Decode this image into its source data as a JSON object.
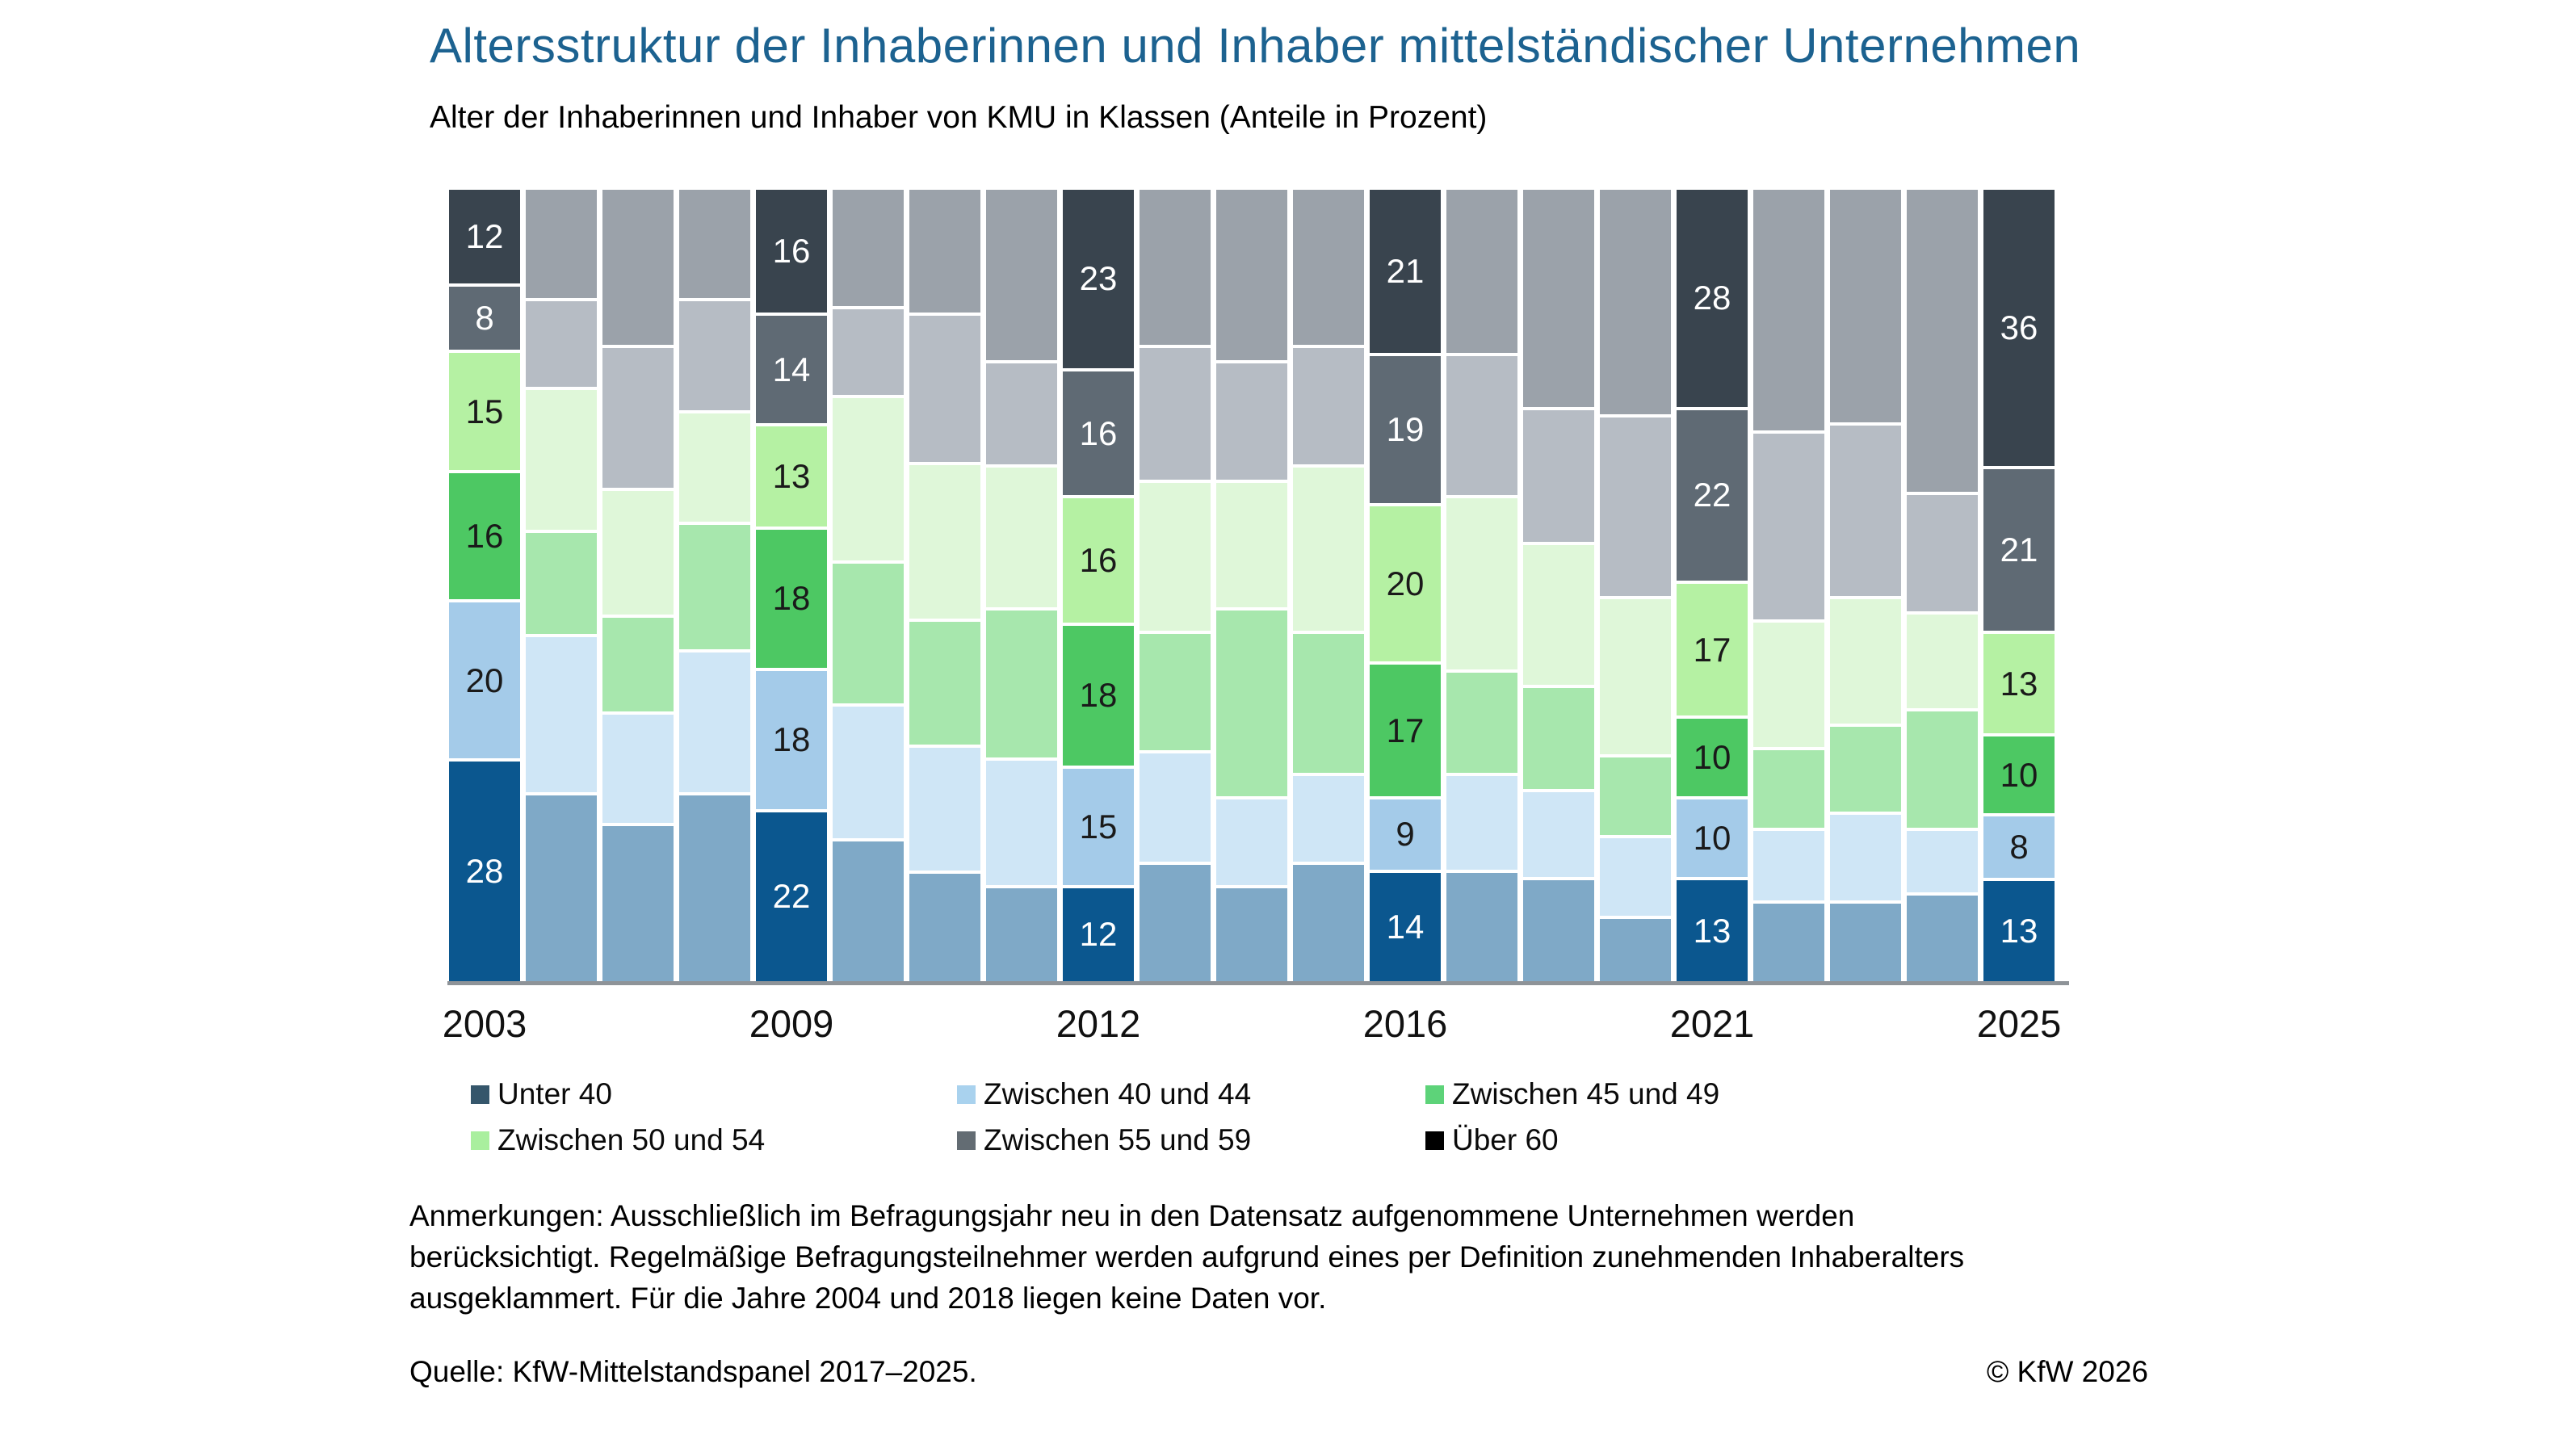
{
  "title": "Altersstruktur der Inhaberinnen und Inhaber mittelständischer Unternehmen",
  "subtitle": "Alter der Inhaberinnen und Inhaber von KMU in Klassen (Anteile in Prozent)",
  "colors": {
    "title_text": "#1C6290",
    "baseline": "#8E9398",
    "label_light": "#FFFFFF",
    "label_dark": "#1A1A1A",
    "highlight": {
      "u40": "#0B578F",
      "b40_44": "#A4CBE9",
      "b45_49": "#4DC863",
      "b50_54": "#B5F1A3",
      "b55_59": "#5F6A74",
      "o60": "#39444E"
    },
    "muted": {
      "u40": "#7FA9C7",
      "b40_44": "#CFE6F6",
      "b45_49": "#A7E7AD",
      "b50_54": "#DFF7D9",
      "b55_59": "#B6BCC4",
      "o60": "#9BA2AA"
    },
    "legend": {
      "u40": "#35566B",
      "b40_44": "#A9D2EE",
      "b45_49": "#5DD379",
      "b50_54": "#A9EF9E",
      "b55_59": "#636C73",
      "o60": "#000000"
    }
  },
  "chart_data": {
    "type": "bar",
    "stacked": true,
    "value_unit": "percent",
    "ylim": [
      0,
      100
    ],
    "grid": false,
    "legend_position": "bottom",
    "keys": [
      "u40",
      "b40_44",
      "b45_49",
      "b50_54",
      "b55_59",
      "o60"
    ],
    "series_labels": {
      "u40": "Unter 40",
      "b40_44": "Zwischen 40 und 44",
      "b45_49": "Zwischen 45 und 49",
      "b50_54": "Zwischen 50 und 54",
      "b55_59": "Zwischen 55 und 59",
      "o60": "Über 60"
    },
    "light_label_keys": [
      "u40",
      "b55_59",
      "o60"
    ],
    "x_tick_labels": [
      "2003",
      "2009",
      "2012",
      "2016",
      "2021",
      "2025"
    ],
    "bars": [
      {
        "tick": "2003",
        "labeled": true,
        "values": {
          "u40": 28,
          "b40_44": 20,
          "b45_49": 16,
          "b50_54": 15,
          "b55_59": 8,
          "o60": 12
        }
      },
      {
        "tick": "",
        "labeled": false,
        "values": {
          "u40": 24,
          "b40_44": 20,
          "b45_49": 13,
          "b50_54": 18,
          "b55_59": 11,
          "o60": 14
        }
      },
      {
        "tick": "",
        "labeled": false,
        "values": {
          "u40": 20,
          "b40_44": 14,
          "b45_49": 12,
          "b50_54": 16,
          "b55_59": 18,
          "o60": 20
        }
      },
      {
        "tick": "",
        "labeled": false,
        "values": {
          "u40": 24,
          "b40_44": 18,
          "b45_49": 16,
          "b50_54": 14,
          "b55_59": 14,
          "o60": 14
        }
      },
      {
        "tick": "2009",
        "labeled": true,
        "values": {
          "u40": 22,
          "b40_44": 18,
          "b45_49": 18,
          "b50_54": 13,
          "b55_59": 14,
          "o60": 16
        }
      },
      {
        "tick": "",
        "labeled": false,
        "values": {
          "u40": 18,
          "b40_44": 17,
          "b45_49": 18,
          "b50_54": 21,
          "b55_59": 11,
          "o60": 15
        }
      },
      {
        "tick": "",
        "labeled": false,
        "values": {
          "u40": 14,
          "b40_44": 16,
          "b45_49": 16,
          "b50_54": 20,
          "b55_59": 19,
          "o60": 16
        }
      },
      {
        "tick": "",
        "labeled": false,
        "values": {
          "u40": 12,
          "b40_44": 16,
          "b45_49": 19,
          "b50_54": 18,
          "b55_59": 13,
          "o60": 22
        }
      },
      {
        "tick": "2012",
        "labeled": true,
        "values": {
          "u40": 12,
          "b40_44": 15,
          "b45_49": 18,
          "b50_54": 16,
          "b55_59": 16,
          "o60": 23
        }
      },
      {
        "tick": "",
        "labeled": false,
        "values": {
          "u40": 15,
          "b40_44": 14,
          "b45_49": 15,
          "b50_54": 19,
          "b55_59": 17,
          "o60": 20
        }
      },
      {
        "tick": "",
        "labeled": false,
        "values": {
          "u40": 12,
          "b40_44": 11,
          "b45_49": 24,
          "b50_54": 16,
          "b55_59": 15,
          "o60": 22
        }
      },
      {
        "tick": "",
        "labeled": false,
        "values": {
          "u40": 15,
          "b40_44": 11,
          "b45_49": 18,
          "b50_54": 21,
          "b55_59": 15,
          "o60": 20
        }
      },
      {
        "tick": "2016",
        "labeled": true,
        "values": {
          "u40": 14,
          "b40_44": 9,
          "b45_49": 17,
          "b50_54": 20,
          "b55_59": 19,
          "o60": 21
        }
      },
      {
        "tick": "",
        "labeled": false,
        "values": {
          "u40": 14,
          "b40_44": 12,
          "b45_49": 13,
          "b50_54": 22,
          "b55_59": 18,
          "o60": 21
        }
      },
      {
        "tick": "",
        "labeled": false,
        "values": {
          "u40": 13,
          "b40_44": 11,
          "b45_49": 13,
          "b50_54": 18,
          "b55_59": 17,
          "o60": 28
        }
      },
      {
        "tick": "",
        "labeled": false,
        "values": {
          "u40": 8,
          "b40_44": 10,
          "b45_49": 10,
          "b50_54": 20,
          "b55_59": 23,
          "o60": 29
        }
      },
      {
        "tick": "2021",
        "labeled": true,
        "values": {
          "u40": 13,
          "b40_44": 10,
          "b45_49": 10,
          "b50_54": 17,
          "b55_59": 22,
          "o60": 28
        }
      },
      {
        "tick": "",
        "labeled": false,
        "values": {
          "u40": 10,
          "b40_44": 9,
          "b45_49": 10,
          "b50_54": 16,
          "b55_59": 24,
          "o60": 31
        }
      },
      {
        "tick": "",
        "labeled": false,
        "values": {
          "u40": 10,
          "b40_44": 11,
          "b45_49": 11,
          "b50_54": 16,
          "b55_59": 22,
          "o60": 30
        }
      },
      {
        "tick": "",
        "labeled": false,
        "values": {
          "u40": 11,
          "b40_44": 8,
          "b45_49": 15,
          "b50_54": 12,
          "b55_59": 15,
          "o60": 39
        }
      },
      {
        "tick": "2025",
        "labeled": true,
        "values": {
          "u40": 13,
          "b40_44": 8,
          "b45_49": 10,
          "b50_54": 13,
          "b55_59": 21,
          "o60": 36
        }
      }
    ]
  },
  "legend": {
    "items": [
      {
        "key": "u40",
        "label": "Unter 40"
      },
      {
        "key": "b40_44",
        "label": "Zwischen 40 und 44"
      },
      {
        "key": "b45_49",
        "label": "Zwischen 45 und 49"
      },
      {
        "key": "b50_54",
        "label": "Zwischen 50 und 54"
      },
      {
        "key": "b55_59",
        "label": "Zwischen 55 und 59"
      },
      {
        "key": "o60",
        "label": "Über 60"
      }
    ]
  },
  "notes": {
    "lines": [
      "Anmerkungen: Ausschließlich im Befragungsjahr neu in den Datensatz aufgenommene Unternehmen werden",
      "berücksichtigt. Regelmäßige Befragungsteilnehmer werden aufgrund eines per Definition zunehmenden Inhaberalters",
      "ausgeklammert. Für die Jahre 2004 und 2018 liegen keine Daten vor."
    ]
  },
  "source": "Quelle: KfW-Mittelstandspanel 2017–2025.",
  "copyright": "© KfW 2026"
}
